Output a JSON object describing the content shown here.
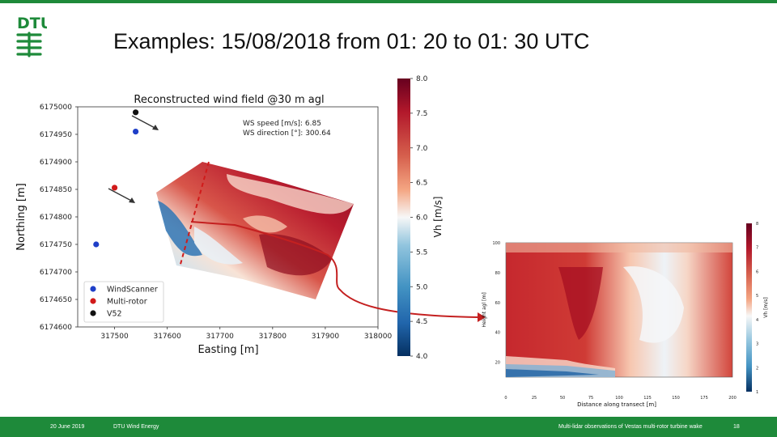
{
  "slide": {
    "title": "Examples: 15/08/2018 from 01: 20 to 01: 30 UTC",
    "logo_text": "DTU",
    "colors": {
      "dtu_red": "#990000",
      "green": "#1e8a3a"
    }
  },
  "footer": {
    "date": "20 June 2019",
    "org": "DTU Wind Energy",
    "subtitle": "Multi-lidar observations of Vestas multi-rotor turbine wake",
    "page": "18"
  },
  "chart_data": [
    {
      "type": "heatmap",
      "title": "Reconstructed wind field @30 m agl",
      "xlabel": "Easting [m]",
      "ylabel": "Northing [m]",
      "x_ticks": [
        "317500",
        "317600",
        "317700",
        "317800",
        "317900",
        "318000"
      ],
      "y_ticks": [
        "6175000",
        "6174950",
        "6174900",
        "6174850",
        "6174800",
        "6174750",
        "6174700",
        "6174650",
        "6174600"
      ],
      "xlim": [
        317430,
        318000
      ],
      "ylim": [
        6174600,
        6175000
      ],
      "annotation_speed": "WS speed [m/s]: 6.85",
      "annotation_direction": "WS direction [°]: 300.64",
      "legend_placement": "bottom-left",
      "legend": [
        {
          "name": "WindScanner",
          "color": "#1f3fc8"
        },
        {
          "name": "Multi-rotor",
          "color": "#d11a1a"
        },
        {
          "name": "V52",
          "color": "#111111"
        }
      ],
      "markers": [
        {
          "series": "V52",
          "x": 317540,
          "y": 6174990
        },
        {
          "series": "WindScanner",
          "x": 317540,
          "y": 6174955
        },
        {
          "series": "Multi-rotor",
          "x": 317500,
          "y": 6174853
        },
        {
          "series": "WindScanner",
          "x": 317465,
          "y": 6174750
        }
      ],
      "colorbar": {
        "label": "Vh [m/s]",
        "ticks": [
          "8.0",
          "7.5",
          "7.0",
          "6.5",
          "6.0",
          "5.5",
          "5.0",
          "4.5",
          "4.0"
        ],
        "range": [
          4.0,
          8.0
        ]
      }
    },
    {
      "type": "heatmap",
      "xlabel": "Distance along transect [m]",
      "ylabel": "Height agl [m]",
      "x_ticks": [
        "0",
        "25",
        "50",
        "75",
        "100",
        "125",
        "150",
        "175",
        "200"
      ],
      "y_ticks": [
        "100",
        "80",
        "60",
        "40",
        "20"
      ],
      "xlim": [
        0,
        200
      ],
      "ylim": [
        10,
        100
      ],
      "colorbar": {
        "label": "Vh [m/s]",
        "ticks": [
          "8",
          "7",
          "6",
          "5",
          "4",
          "3",
          "2",
          "1"
        ],
        "range": [
          1,
          8
        ]
      }
    }
  ]
}
